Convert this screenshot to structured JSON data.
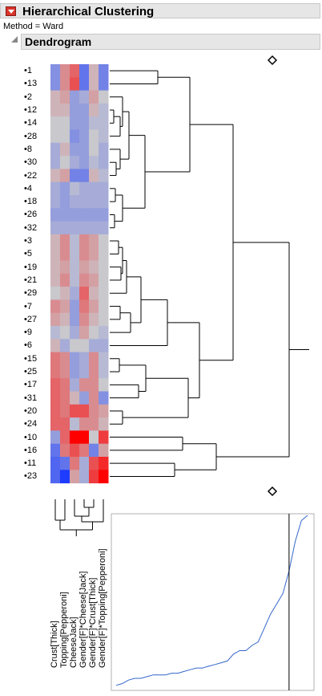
{
  "header": {
    "title": "Hierarchical Clustering",
    "method_label": "Method =",
    "method_value": "Ward"
  },
  "dendrogram": {
    "title": "Dendrogram"
  },
  "rows": [
    "1",
    "13",
    "2",
    "12",
    "14",
    "28",
    "8",
    "30",
    "22",
    "4",
    "18",
    "26",
    "32",
    "3",
    "5",
    "19",
    "21",
    "29",
    "7",
    "27",
    "9",
    "6",
    "15",
    "25",
    "17",
    "31",
    "20",
    "24",
    "10",
    "16",
    "11",
    "23"
  ],
  "columns": [
    "Crust[Thick]",
    "Topping[Pepperoni]",
    "CheeseJack]",
    "Gender[F]*Cheese[Jack]",
    "Gender[F]*Crust[Thick]",
    "Gender[F]*Topping[Pepperoni]"
  ],
  "colors": {
    "hot": "#ff0000",
    "cold": "#1e3cff",
    "neutral": "#c8c8c8",
    "link": "#000000",
    "distance_line": "#3366cc"
  },
  "heatmap": [
    [
      -0.4,
      0.3,
      0.5,
      -0.6,
      0.1,
      -0.5
    ],
    [
      -0.4,
      0.3,
      0.6,
      -0.6,
      0.1,
      -0.5
    ],
    [
      0.1,
      0.2,
      -0.3,
      -0.2,
      0.2,
      0.0
    ],
    [
      0.1,
      0.1,
      -0.3,
      -0.3,
      0.1,
      -0.1
    ],
    [
      0.0,
      0.0,
      -0.3,
      -0.3,
      -0.1,
      -0.1
    ],
    [
      0.0,
      0.0,
      -0.4,
      -0.3,
      0.0,
      -0.1
    ],
    [
      -0.2,
      0.1,
      -0.3,
      -0.3,
      0.0,
      -0.2
    ],
    [
      -0.2,
      0.0,
      -0.2,
      -0.3,
      -0.1,
      -0.2
    ],
    [
      0.1,
      0.2,
      -0.5,
      -0.5,
      0.1,
      -0.1
    ],
    [
      -0.2,
      -0.3,
      -0.1,
      -0.2,
      -0.2,
      -0.2
    ],
    [
      -0.2,
      -0.3,
      -0.2,
      -0.2,
      -0.2,
      -0.2
    ],
    [
      -0.3,
      -0.3,
      -0.3,
      -0.3,
      -0.3,
      -0.3
    ],
    [
      -0.2,
      -0.2,
      -0.2,
      -0.2,
      -0.2,
      -0.2
    ],
    [
      0.1,
      0.3,
      -0.1,
      0.3,
      0.2,
      0.0
    ],
    [
      0.1,
      0.3,
      -0.1,
      0.3,
      0.2,
      0.0
    ],
    [
      0.1,
      0.2,
      -0.1,
      0.2,
      0.1,
      0.0
    ],
    [
      0.1,
      0.3,
      -0.1,
      0.3,
      0.2,
      0.0
    ],
    [
      0.0,
      0.1,
      -0.2,
      0.5,
      0.1,
      0.0
    ],
    [
      0.3,
      0.2,
      -0.3,
      0.4,
      0.2,
      0.0
    ],
    [
      0.2,
      0.1,
      -0.3,
      0.3,
      0.1,
      0.0
    ],
    [
      -0.1,
      0.0,
      -0.2,
      0.2,
      0.0,
      -0.1
    ],
    [
      0.1,
      -0.2,
      0.0,
      0.0,
      -0.2,
      -0.2
    ],
    [
      0.4,
      0.3,
      -0.3,
      -0.2,
      0.3,
      -0.1
    ],
    [
      0.4,
      0.3,
      -0.3,
      -0.2,
      0.3,
      -0.1
    ],
    [
      0.5,
      0.4,
      -0.2,
      0.3,
      0.3,
      0.0
    ],
    [
      0.5,
      0.4,
      0.1,
      -0.3,
      0.3,
      -0.4
    ],
    [
      0.5,
      0.4,
      0.6,
      0.6,
      0.3,
      0.2
    ],
    [
      0.5,
      0.5,
      -0.1,
      0.3,
      0.3,
      0.1
    ],
    [
      -0.3,
      0.5,
      1.0,
      1.0,
      0.0,
      0.7
    ],
    [
      -0.6,
      0.4,
      0.6,
      0.4,
      -0.5,
      0.2
    ],
    [
      -0.7,
      -0.6,
      0.4,
      -0.2,
      0.6,
      0.8
    ],
    [
      -0.7,
      -1.0,
      0.2,
      -0.2,
      0.7,
      1.0
    ]
  ],
  "distance_plot": {
    "values": [
      0.02,
      0.03,
      0.05,
      0.06,
      0.06,
      0.07,
      0.08,
      0.08,
      0.08,
      0.09,
      0.09,
      0.1,
      0.11,
      0.12,
      0.12,
      0.13,
      0.14,
      0.15,
      0.16,
      0.2,
      0.22,
      0.22,
      0.25,
      0.27,
      0.35,
      0.43,
      0.49,
      0.55,
      0.68,
      0.85,
      0.97,
      1.0
    ],
    "cut_index": 28
  }
}
